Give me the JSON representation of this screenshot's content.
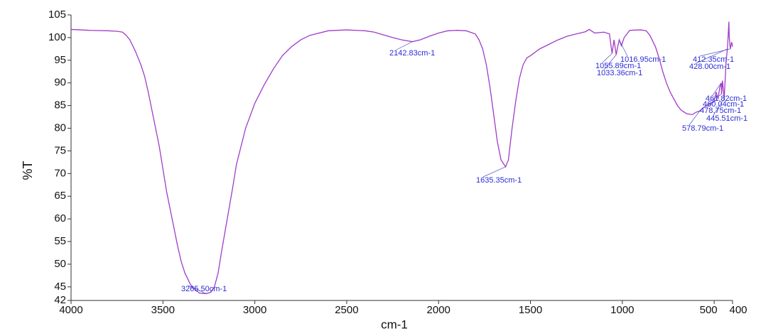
{
  "chart_data": {
    "type": "line",
    "y_label": "%T",
    "x_label": "cm-1",
    "xlim": [
      4000,
      400
    ],
    "ylim": [
      42,
      105
    ],
    "xticks": [
      4000,
      3500,
      3000,
      2500,
      2000,
      1500,
      1000,
      500,
      400
    ],
    "yticks": [
      42,
      45,
      50,
      55,
      60,
      65,
      70,
      75,
      80,
      85,
      90,
      95,
      100,
      105
    ],
    "series": [
      {
        "color": "#a03cc8",
        "x": [
          4000,
          3900,
          3800,
          3750,
          3720,
          3700,
          3680,
          3650,
          3620,
          3600,
          3580,
          3550,
          3520,
          3500,
          3480,
          3450,
          3420,
          3400,
          3380,
          3350,
          3320,
          3300,
          3265.5,
          3240,
          3220,
          3200,
          3180,
          3150,
          3120,
          3100,
          3050,
          3000,
          2950,
          2900,
          2850,
          2800,
          2750,
          2700,
          2600,
          2500,
          2400,
          2350,
          2300,
          2250,
          2200,
          2142.83,
          2100,
          2050,
          2000,
          1950,
          1900,
          1850,
          1800,
          1780,
          1760,
          1740,
          1720,
          1700,
          1680,
          1660,
          1635.35,
          1620,
          1600,
          1580,
          1560,
          1540,
          1520,
          1500,
          1450,
          1400,
          1350,
          1300,
          1250,
          1200,
          1180,
          1150,
          1100,
          1070,
          1055.89,
          1045,
          1033.36,
          1025,
          1016.95,
          1005,
          990,
          960,
          900,
          870,
          850,
          820,
          800,
          780,
          760,
          740,
          720,
          700,
          680,
          650,
          620,
          600,
          578.79,
          560,
          540,
          520,
          500,
          490,
          478.75,
          470,
          461.82,
          460.04,
          455,
          445.51,
          440,
          435,
          428,
          420,
          418,
          412.35,
          405,
          400
        ],
        "values": [
          101.8,
          101.6,
          101.5,
          101.4,
          101.2,
          100.5,
          99.5,
          97,
          94,
          91.5,
          88,
          82,
          76,
          71,
          66,
          60,
          54,
          50.5,
          48,
          45.5,
          44.2,
          43.6,
          43.5,
          43.8,
          45,
          48,
          53,
          60,
          67,
          72,
          80,
          85.5,
          89.5,
          93,
          96,
          98,
          99.5,
          100.5,
          101.5,
          101.7,
          101.5,
          101.2,
          100.6,
          100,
          99.5,
          99.1,
          99.5,
          100.3,
          101,
          101.5,
          101.6,
          101.5,
          100.8,
          99.5,
          97.5,
          94,
          89,
          83,
          77,
          73,
          71.5,
          73,
          80,
          86,
          91,
          94,
          95.5,
          96,
          97.5,
          98.5,
          99.5,
          100.3,
          100.8,
          101.3,
          101.8,
          101,
          101.2,
          100.8,
          96.5,
          99.5,
          96.2,
          98,
          99.5,
          98.2,
          100,
          101.6,
          101.7,
          101.5,
          100.5,
          98,
          95.5,
          92.5,
          90,
          88,
          86.5,
          85,
          84,
          83.2,
          83,
          83.5,
          83.8,
          84.5,
          85,
          85.5,
          86,
          88,
          86.5,
          89,
          90,
          87.5,
          90.5,
          86.5,
          91,
          95,
          97.5,
          103.5,
          100,
          97.5,
          99,
          98
        ]
      }
    ],
    "annotations": [
      {
        "text": "3265.50cm-1",
        "x": 3265.5,
        "y": 43.5
      },
      {
        "text": "2142.83cm-1",
        "x": 2142.83,
        "y": 99.1
      },
      {
        "text": "1635.35cm-1",
        "x": 1635.35,
        "y": 71.5
      },
      {
        "text": "1016.95cm-1",
        "x": 1016.95,
        "y": 99.5
      },
      {
        "text": "1055.89cm-1",
        "x": 1055.89,
        "y": 96.5
      },
      {
        "text": "1033.36cm-1",
        "x": 1033.36,
        "y": 96.2
      },
      {
        "text": "412.35cm-1",
        "x": 412.35,
        "y": 97.5
      },
      {
        "text": "428.00cm-1",
        "x": 428,
        "y": 97.5
      },
      {
        "text": "461.82cm-1",
        "x": 461.82,
        "y": 90
      },
      {
        "text": "460.04cm-1",
        "x": 460.04,
        "y": 87.5
      },
      {
        "text": "478.75cm-1",
        "x": 478.75,
        "y": 86.5
      },
      {
        "text": "445.51cm-1",
        "x": 445.51,
        "y": 86.5
      },
      {
        "text": "578.79cm-1",
        "x": 578.79,
        "y": 83.8
      }
    ]
  }
}
